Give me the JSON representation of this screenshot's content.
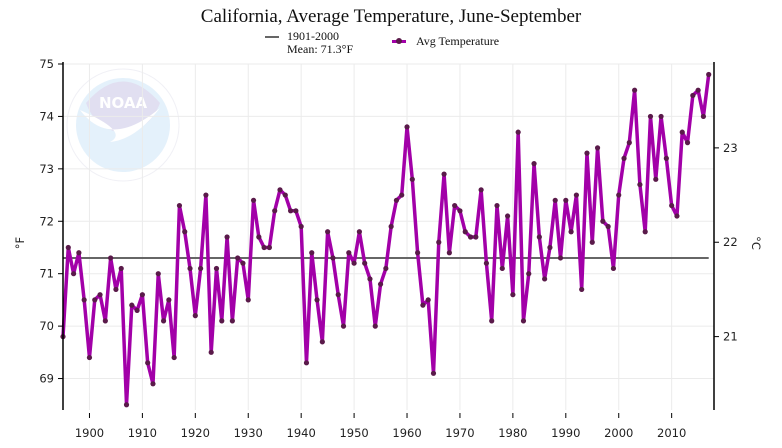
{
  "chart_data": {
    "type": "line",
    "title": "California, Average Temperature, June-September",
    "xlabel": "",
    "ylabel": "°F",
    "ylabel_right": "°C",
    "xlim": [
      1895,
      2018
    ],
    "ylim": [
      68.4,
      75
    ],
    "x_ticks": [
      1900,
      1910,
      1920,
      1930,
      1940,
      1950,
      1960,
      1970,
      1980,
      1990,
      2000,
      2010
    ],
    "y_ticks": [
      69,
      70,
      71,
      72,
      73,
      74,
      75
    ],
    "y_right_ticks": [
      21,
      22,
      23
    ],
    "grid": true,
    "legend_position": "top",
    "mean_line": {
      "label_line1": "1901-2000",
      "label_line2": "Mean: 71.3°F",
      "value": 71.3,
      "color": "#666666"
    },
    "series": [
      {
        "name": "Avg Temperature",
        "color": "#a200a8",
        "marker_color": "#5a1a4a",
        "x_start": 1895,
        "values": [
          69.8,
          71.5,
          71.0,
          71.4,
          70.5,
          69.4,
          70.5,
          70.6,
          70.1,
          71.3,
          70.7,
          71.1,
          68.5,
          70.4,
          70.3,
          70.6,
          69.3,
          68.9,
          71.0,
          70.1,
          70.5,
          69.4,
          72.3,
          71.8,
          71.1,
          70.2,
          71.1,
          72.5,
          69.5,
          71.1,
          70.1,
          71.7,
          70.1,
          71.3,
          71.2,
          70.5,
          72.4,
          71.7,
          71.5,
          71.5,
          72.2,
          72.6,
          72.5,
          72.2,
          72.2,
          71.9,
          69.3,
          71.4,
          70.5,
          69.7,
          71.8,
          71.3,
          70.6,
          70.0,
          71.4,
          71.2,
          71.8,
          71.2,
          70.9,
          70.0,
          70.8,
          71.1,
          71.9,
          72.4,
          72.5,
          73.8,
          72.8,
          71.4,
          70.4,
          70.5,
          69.1,
          71.6,
          72.9,
          71.4,
          72.3,
          72.2,
          71.8,
          71.7,
          71.7,
          72.6,
          71.2,
          70.1,
          72.3,
          71.1,
          72.1,
          70.6,
          73.7,
          70.1,
          71.0,
          73.1,
          71.7,
          70.9,
          71.5,
          72.4,
          71.3,
          72.4,
          71.8,
          72.5,
          70.7,
          73.3,
          71.6,
          73.4,
          72.0,
          71.9,
          71.1,
          72.5,
          73.2,
          73.5,
          74.5,
          72.7,
          71.8,
          74.0,
          72.8,
          74.0,
          73.2,
          72.3,
          72.1,
          73.7,
          73.5,
          74.4,
          74.5,
          74.0,
          74.8
        ]
      }
    ]
  },
  "watermark": {
    "text": "NOAA",
    "ring_text": "NATIONAL OCEANIC AND ATMOSPHERIC ADMINISTRATION · U.S. DEPARTMENT OF COMMERCE"
  }
}
